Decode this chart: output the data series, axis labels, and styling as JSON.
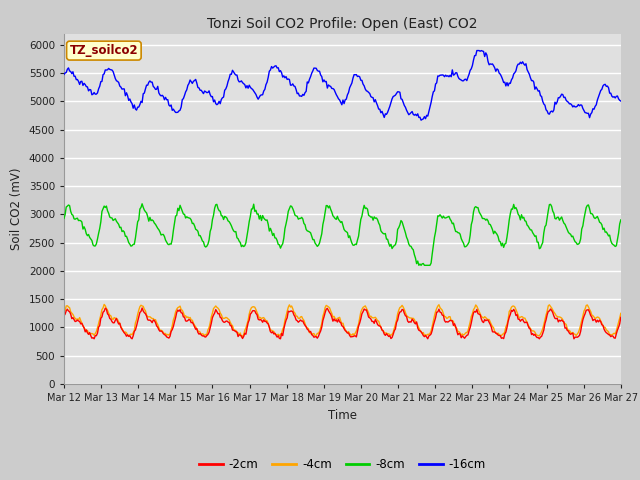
{
  "title": "Tonzi Soil CO2 Profile: Open (East) CO2",
  "xlabel": "Time",
  "ylabel": "Soil CO2 (mV)",
  "legend_label": "TZ_soilco2",
  "legend_entries": [
    "-2cm",
    "-4cm",
    "-8cm",
    "-16cm"
  ],
  "legend_colors": [
    "#ff0000",
    "#ffa500",
    "#00cc00",
    "#0000ff"
  ],
  "ylim": [
    0,
    6200
  ],
  "yticks": [
    0,
    500,
    1000,
    1500,
    2000,
    2500,
    3000,
    3500,
    4000,
    4500,
    5000,
    5500,
    6000
  ],
  "bg_color": "#dddddd",
  "plot_bg": "#e8e8e8",
  "n_points": 500,
  "x_start": 12,
  "x_end": 27,
  "xtick_positions": [
    12,
    13,
    14,
    15,
    16,
    17,
    18,
    19,
    20,
    21,
    22,
    23,
    24,
    25,
    26,
    27
  ],
  "xtick_labels": [
    "Mar 12",
    "Mar 13",
    "Mar 14",
    "Mar 15",
    "Mar 16",
    "Mar 17",
    "Mar 18",
    "Mar 19",
    "Mar 20",
    "Mar 21",
    "Mar 22",
    "Mar 23",
    "Mar 24",
    "Mar 25",
    "Mar 26",
    "Mar 27"
  ]
}
